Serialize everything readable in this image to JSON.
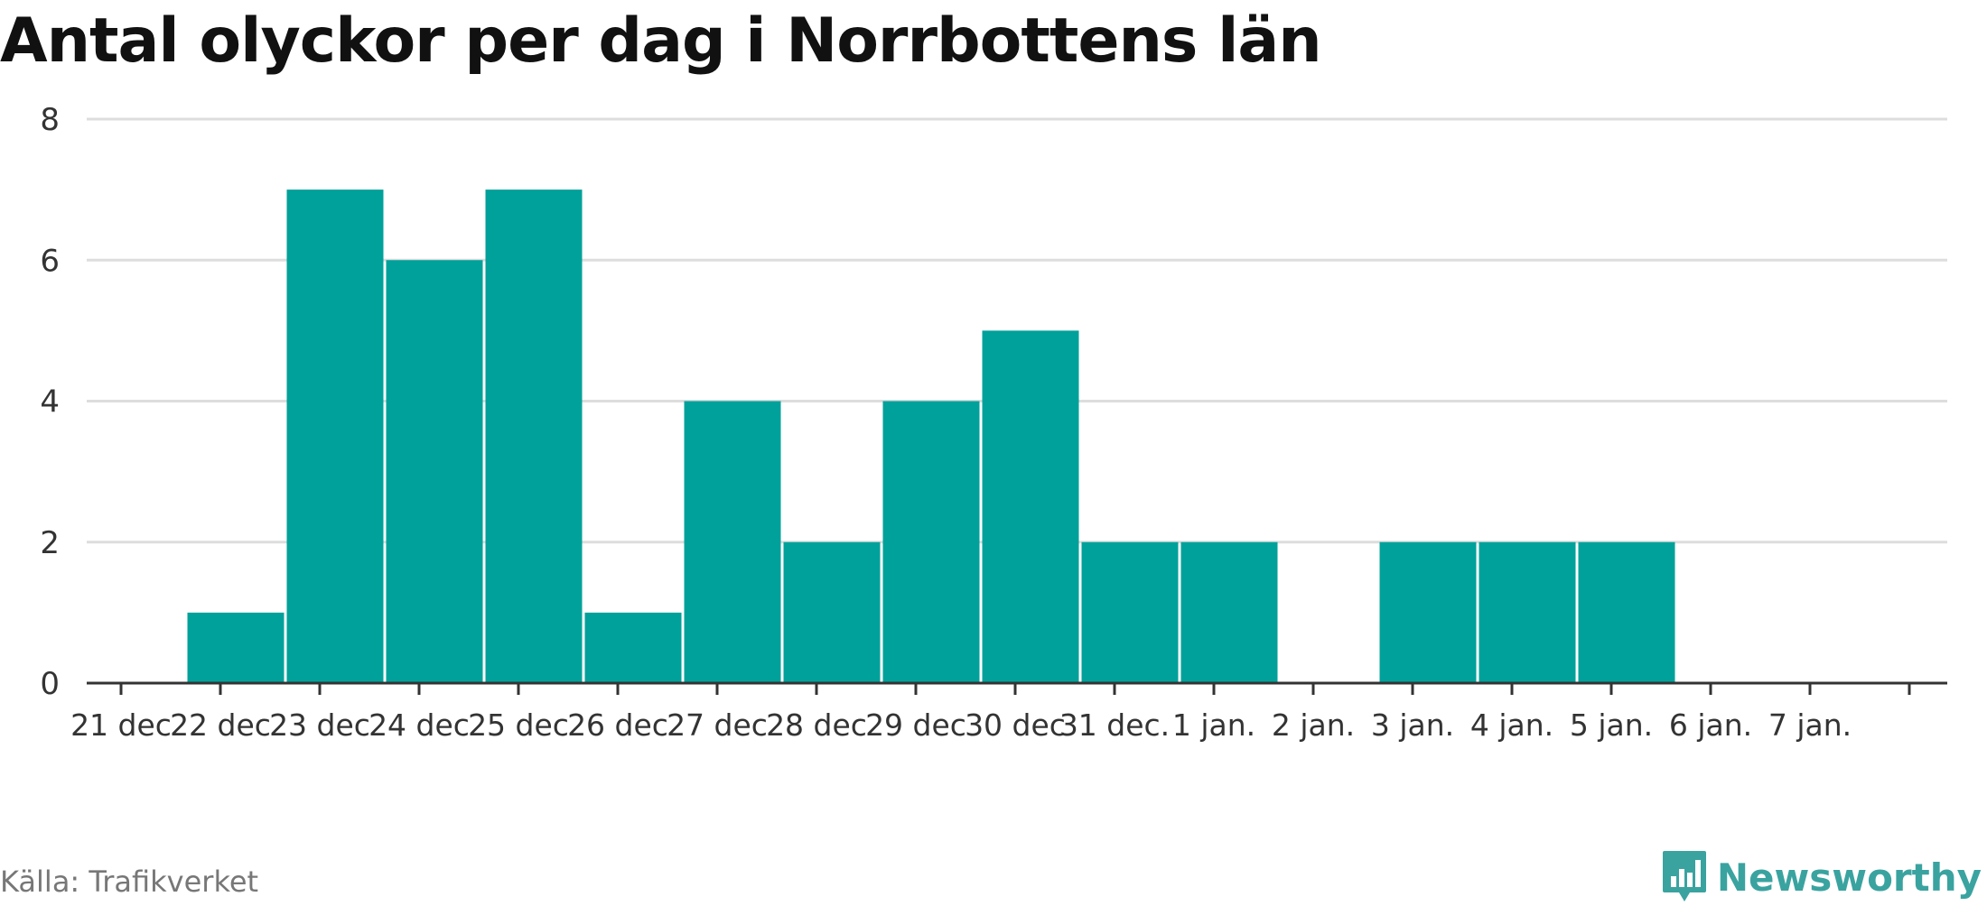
{
  "title": "Antal olyckor per dag i Norrbottens län",
  "source": "Källa: Trafikverket",
  "brand": {
    "name": "Newsworthy",
    "icon": "newsworthy-logo-icon"
  },
  "colors": {
    "bar": "#00a19a",
    "grid": "#dddddd",
    "axis": "#333333",
    "text": "#333333",
    "brand": "#3aa3a0"
  },
  "chart_data": {
    "type": "bar",
    "title": "Antal olyckor per dag i Norrbottens län",
    "xlabel": "",
    "ylabel": "",
    "categories": [
      "21 dec",
      "22 dec",
      "23 dec",
      "24 dec",
      "25 dec",
      "26 dec",
      "27 dec",
      "28 dec",
      "29 dec",
      "30 dec",
      "31 dec.",
      "1 jan.",
      "2 jan.",
      "3 jan.",
      "4 jan.",
      "5 jan.",
      "6 jan.",
      "7 jan."
    ],
    "tick_labels": [
      "21 dec",
      "22 dec",
      "23 dec",
      "24 dec",
      "25 dec",
      "26 dec",
      "27 dec",
      "28 dec",
      "29 dec",
      "30 dec",
      "31 dec.",
      "1 jan.",
      "2 jan.",
      "3 jan.",
      "4 jan.",
      "5 jan.",
      "6 jan.",
      "7 jan."
    ],
    "values": [
      0,
      1,
      7,
      6,
      7,
      1,
      4,
      2,
      4,
      5,
      2,
      2,
      0,
      2,
      2,
      2,
      0,
      0
    ],
    "ylim": [
      0,
      8
    ],
    "yticks": [
      0,
      2,
      4,
      6,
      8
    ],
    "grid": true,
    "legend": "none"
  }
}
